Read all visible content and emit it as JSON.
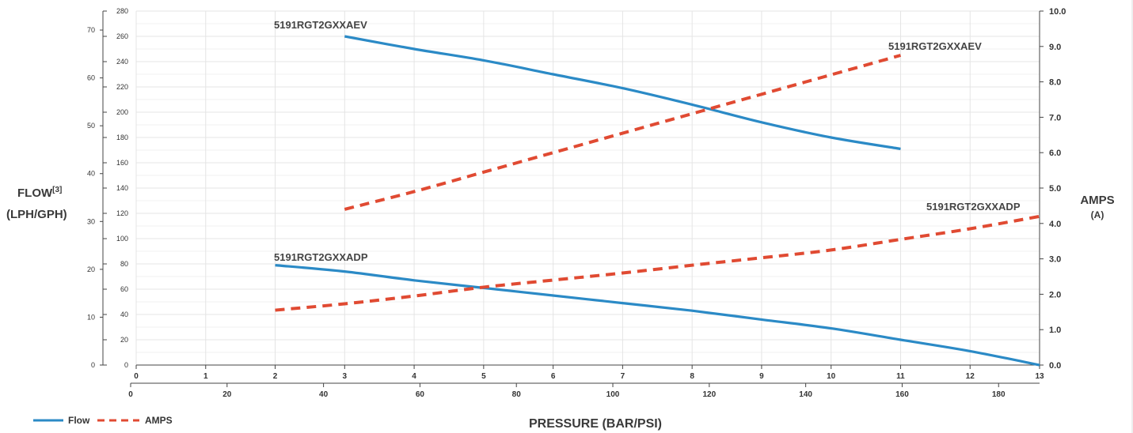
{
  "chart_data": {
    "type": "line",
    "axes": {
      "x_bar": {
        "ticks": [
          "0",
          "1",
          "2",
          "3",
          "4",
          "5",
          "6",
          "7",
          "8",
          "9",
          "10",
          "11",
          "12",
          "13"
        ],
        "range": [
          0,
          13
        ]
      },
      "x_psi": {
        "ticks": [
          "0",
          "20",
          "40",
          "60",
          "80",
          "100",
          "120",
          "140",
          "160",
          "180"
        ],
        "range": [
          0,
          188.5
        ]
      },
      "y_gph": {
        "ticks": [
          "0",
          "10",
          "20",
          "30",
          "40",
          "50",
          "60",
          "70"
        ]
      },
      "y_lph": {
        "ticks": [
          "0",
          "20",
          "40",
          "60",
          "80",
          "100",
          "120",
          "140",
          "160",
          "180",
          "200",
          "220",
          "240",
          "260",
          "280"
        ],
        "range": [
          0,
          280
        ]
      },
      "y_amps": {
        "ticks": [
          "0.0",
          "1.0",
          "2.0",
          "3.0",
          "4.0",
          "5.0",
          "6.0",
          "7.0",
          "8.0",
          "9.0",
          "10.0"
        ],
        "range": [
          0,
          10
        ]
      }
    },
    "ylabel_left": {
      "title": "FLOW",
      "superscript": "[3]",
      "units": "(LPH/GPH)"
    },
    "ylabel_right": {
      "title": "AMPS",
      "units": "(A)"
    },
    "xlabel": "PRESSURE (BAR/PSI)",
    "series": [
      {
        "name": "5191RGT2GXXAEV",
        "kind": "flow",
        "axis": "lph",
        "points": [
          [
            3,
            260
          ],
          [
            4,
            250
          ],
          [
            5,
            241
          ],
          [
            6,
            230
          ],
          [
            7,
            219
          ],
          [
            8,
            206
          ],
          [
            9,
            192
          ],
          [
            10,
            180
          ],
          [
            11,
            171
          ]
        ]
      },
      {
        "name": "5191RGT2GXXADP",
        "kind": "flow",
        "axis": "lph",
        "points": [
          [
            2,
            79
          ],
          [
            3,
            74
          ],
          [
            4,
            67
          ],
          [
            5,
            61
          ],
          [
            6,
            55
          ],
          [
            7,
            49
          ],
          [
            8,
            43
          ],
          [
            9,
            36
          ],
          [
            10,
            29
          ],
          [
            11,
            20
          ],
          [
            12,
            11
          ],
          [
            13,
            0
          ]
        ]
      },
      {
        "name": "5191RGT2GXXAEV",
        "kind": "amps",
        "axis": "amps",
        "points": [
          [
            3,
            4.4
          ],
          [
            4,
            4.9
          ],
          [
            5,
            5.45
          ],
          [
            6,
            6.0
          ],
          [
            7,
            6.55
          ],
          [
            8,
            7.1
          ],
          [
            9,
            7.65
          ],
          [
            10,
            8.2
          ],
          [
            11,
            8.75
          ]
        ]
      },
      {
        "name": "5191RGT2GXXADP",
        "kind": "amps",
        "axis": "amps",
        "points": [
          [
            2,
            1.55
          ],
          [
            3,
            1.73
          ],
          [
            4,
            1.95
          ],
          [
            5,
            2.2
          ],
          [
            6,
            2.4
          ],
          [
            7,
            2.6
          ],
          [
            8,
            2.82
          ],
          [
            9,
            3.03
          ],
          [
            10,
            3.25
          ],
          [
            11,
            3.55
          ],
          [
            12,
            3.85
          ],
          [
            13,
            4.2
          ]
        ]
      }
    ],
    "series_labels": [
      {
        "text": "5191RGT2GXXAEV"
      },
      {
        "text": "5191RGT2GXXAEV"
      },
      {
        "text": "5191RGT2GXXADP"
      },
      {
        "text": "5191RGT2GXXADP"
      }
    ],
    "legend": [
      {
        "label": "Flow",
        "color": "#2b8ac6",
        "style": "solid"
      },
      {
        "label": "AMPS",
        "color": "#e04a32",
        "style": "dashed"
      }
    ],
    "colors": {
      "flow": "#2b8ac6",
      "amps": "#e04a32",
      "grid": "#e4e4e4"
    },
    "grid": true,
    "legend_position": "bottom-left"
  }
}
